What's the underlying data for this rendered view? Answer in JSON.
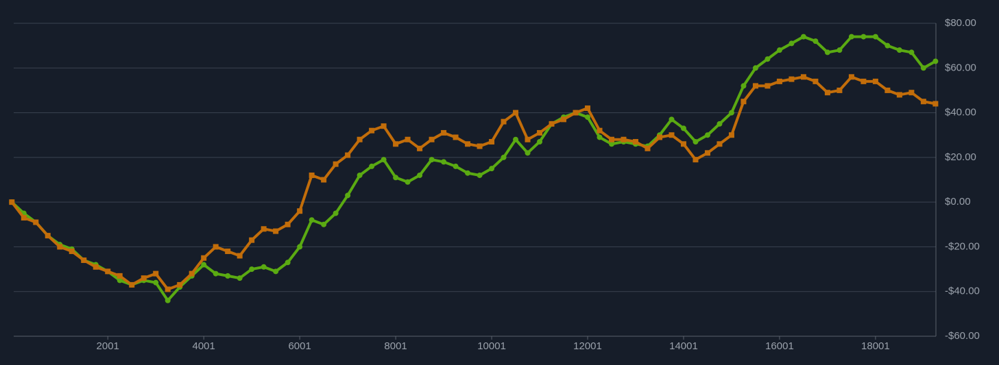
{
  "chart_data": {
    "type": "line",
    "x": [
      1,
      251,
      501,
      751,
      1001,
      1251,
      1501,
      1751,
      2001,
      2251,
      2501,
      2751,
      3001,
      3251,
      3501,
      3751,
      4001,
      4251,
      4501,
      4751,
      5001,
      5251,
      5501,
      5751,
      6001,
      6251,
      6501,
      6751,
      7001,
      7251,
      7501,
      7751,
      8001,
      8251,
      8501,
      8751,
      9001,
      9251,
      9501,
      9751,
      10001,
      10251,
      10501,
      10751,
      11001,
      11251,
      11501,
      11751,
      12001,
      12251,
      12501,
      12751,
      13001,
      13251,
      13501,
      13751,
      14001,
      14251,
      14501,
      14751,
      15001,
      15251,
      15501,
      15751,
      16001,
      16251,
      16501,
      16751,
      17001,
      17251,
      17501,
      17751,
      18001,
      18251,
      18501,
      18751,
      19001,
      19251
    ],
    "series": [
      {
        "color": "#5aaa12",
        "marker": "circle",
        "values": [
          0,
          -5,
          -9,
          -15,
          -19,
          -21,
          -26,
          -28,
          -31,
          -35,
          -37,
          -35,
          -36,
          -44,
          -38,
          -33,
          -28,
          -32,
          -33,
          -34,
          -30,
          -29,
          -31,
          -27,
          -20,
          -8,
          -10,
          -5,
          3,
          12,
          16,
          19,
          11,
          9,
          12,
          19,
          18,
          16,
          13,
          12,
          15,
          20,
          28,
          22,
          27,
          35,
          38,
          40,
          38,
          29,
          26,
          27,
          26,
          25,
          30,
          37,
          33,
          27,
          30,
          35,
          40,
          52,
          60,
          64,
          68,
          71,
          74,
          72,
          67,
          68,
          74,
          74,
          74,
          70,
          68,
          67,
          60,
          63
        ]
      },
      {
        "color": "#c26d0a",
        "marker": "square",
        "values": [
          0,
          -7,
          -9,
          -15,
          -20,
          -22,
          -26,
          -29,
          -31,
          -33,
          -37,
          -34,
          -32,
          -39,
          -37,
          -32,
          -25,
          -20,
          -22,
          -24,
          -17,
          -12,
          -13,
          -10,
          -4,
          12,
          10,
          17,
          21,
          28,
          32,
          34,
          26,
          28,
          24,
          28,
          31,
          29,
          26,
          25,
          27,
          36,
          40,
          28,
          31,
          35,
          37,
          40,
          42,
          32,
          28,
          28,
          27,
          24,
          29,
          30,
          26,
          19,
          22,
          26,
          30,
          45,
          52,
          52,
          54,
          55,
          56,
          54,
          49,
          50,
          56,
          54,
          54,
          50,
          48,
          49,
          45,
          44
        ]
      }
    ],
    "xlim": [
      40,
      19260
    ],
    "xticks": [
      2001,
      4001,
      6001,
      8001,
      10001,
      12001,
      14001,
      16001,
      18001
    ],
    "ylim": [
      -60,
      80
    ],
    "yticks": [
      {
        "value": -60,
        "label": "-$60.00"
      },
      {
        "value": -40,
        "label": "-$40.00"
      },
      {
        "value": -20,
        "label": "-$20.00"
      },
      {
        "value": 0,
        "label": "$0.00"
      },
      {
        "value": 20,
        "label": "$20.00"
      },
      {
        "value": 40,
        "label": "$40.00"
      },
      {
        "value": 60,
        "label": "$60.00"
      },
      {
        "value": 80,
        "label": "$80.00"
      }
    ],
    "grid": true
  }
}
